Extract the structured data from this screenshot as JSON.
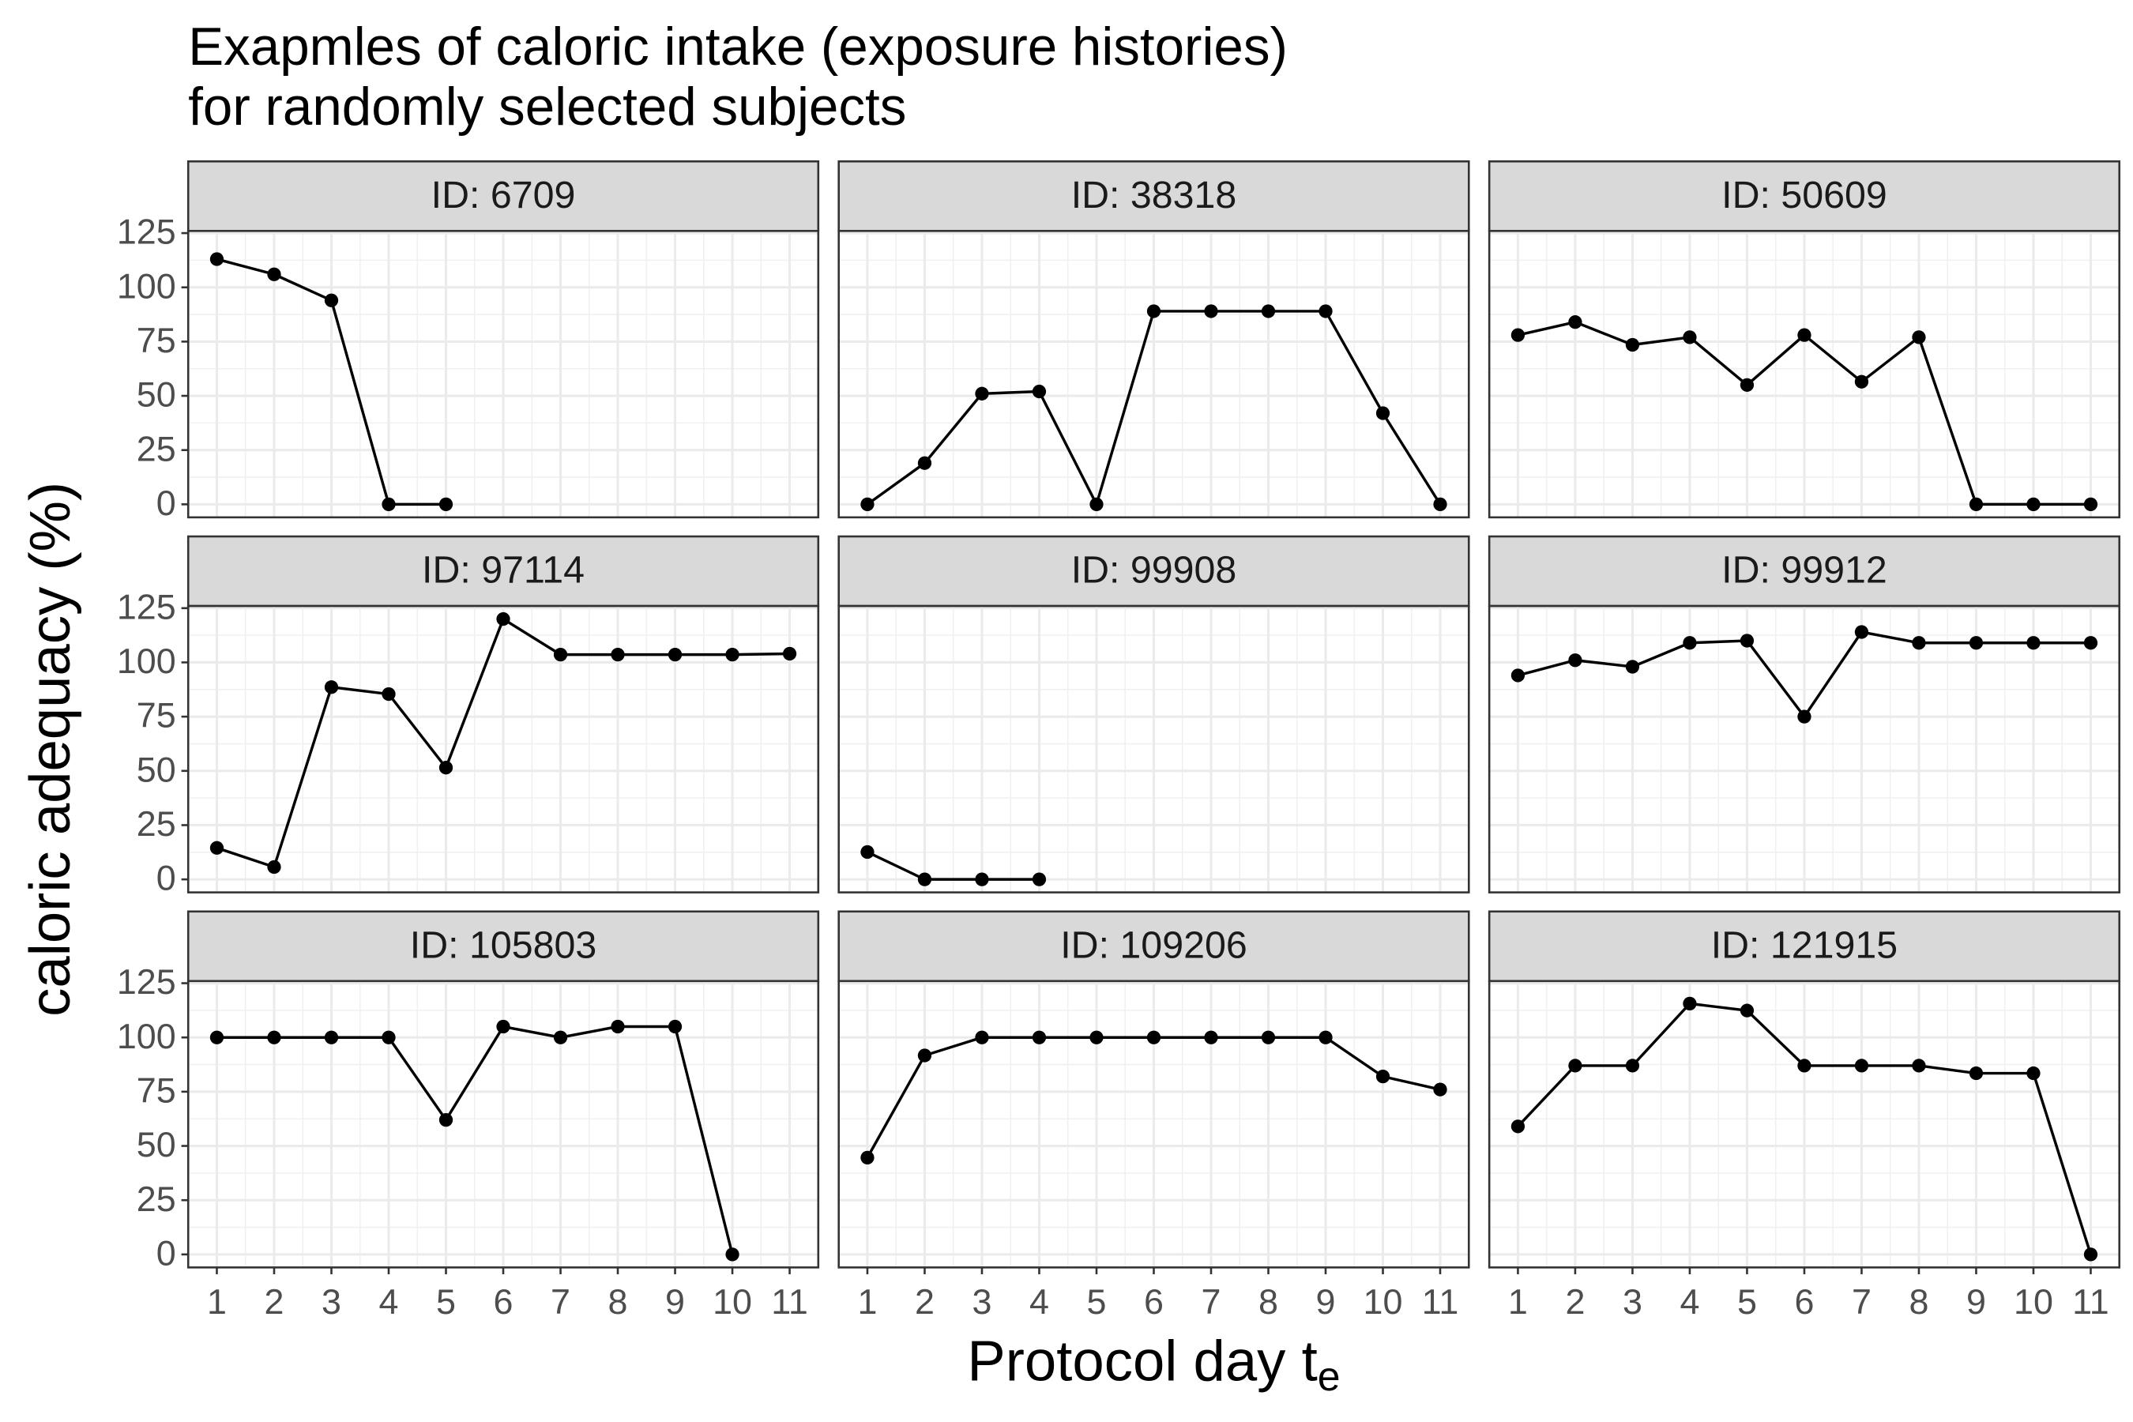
{
  "chart_data": {
    "type": "line",
    "title": [
      "Exapmles of caloric intake (exposure histories)",
      "for randomly selected subjects"
    ],
    "x_label": "Protocol day t",
    "x_label_subscript": "e",
    "y_label": "caloric adequacy (%)",
    "xlim": [
      0.5,
      11.5
    ],
    "xticks": [
      1,
      2,
      3,
      4,
      5,
      6,
      7,
      8,
      9,
      10,
      11
    ],
    "ylim": [
      -6,
      126
    ],
    "yticks": [
      0,
      25,
      50,
      75,
      100,
      125
    ],
    "grid": true,
    "minor_grid": true,
    "color": "#000000",
    "panels": [
      {
        "title": "ID: 6709",
        "x": [
          1,
          2,
          3,
          4,
          5
        ],
        "values": [
          113,
          106,
          94,
          0,
          0
        ]
      },
      {
        "title": "ID: 38318",
        "x": [
          1,
          2,
          3,
          4,
          5,
          6,
          7,
          8,
          9,
          10,
          11
        ],
        "values": [
          0,
          19,
          51,
          52,
          0,
          89,
          89,
          89,
          89,
          42,
          0
        ]
      },
      {
        "title": "ID: 50609",
        "x": [
          1,
          2,
          3,
          4,
          5,
          6,
          7,
          8,
          9,
          10,
          11
        ],
        "values": [
          78,
          84,
          73.5,
          77,
          55,
          78,
          56.5,
          77,
          0,
          0,
          0
        ]
      },
      {
        "title": "ID: 97114",
        "x": [
          1,
          2,
          3,
          4,
          5,
          6,
          7,
          8,
          9,
          10,
          11
        ],
        "values": [
          14.5,
          5.7,
          88.6,
          85.4,
          51.5,
          120,
          103.6,
          103.6,
          103.6,
          103.6,
          104
        ]
      },
      {
        "title": "ID: 99908",
        "x": [
          1,
          2,
          3,
          4
        ],
        "values": [
          12.6,
          0,
          0,
          0
        ]
      },
      {
        "title": "ID: 99912",
        "x": [
          1,
          2,
          3,
          4,
          5,
          6,
          7,
          8,
          9,
          10,
          11
        ],
        "values": [
          94,
          101,
          98,
          109,
          110,
          75,
          114,
          109,
          109,
          109,
          109
        ]
      },
      {
        "title": "ID: 105803",
        "x": [
          1,
          2,
          3,
          4,
          5,
          6,
          7,
          8,
          9,
          10
        ],
        "values": [
          100,
          100,
          100,
          100,
          62,
          105,
          100,
          105,
          105,
          0
        ]
      },
      {
        "title": "ID: 109206",
        "x": [
          1,
          2,
          3,
          4,
          5,
          6,
          7,
          8,
          9,
          10,
          11
        ],
        "values": [
          44.6,
          91.7,
          100,
          100,
          100,
          100,
          100,
          100,
          100,
          82,
          76
        ]
      },
      {
        "title": "ID: 121915",
        "x": [
          1,
          2,
          3,
          4,
          5,
          6,
          7,
          8,
          9,
          10,
          11
        ],
        "values": [
          59,
          87,
          87,
          115.6,
          112.4,
          87,
          87,
          87,
          83.5,
          83.5,
          0
        ]
      }
    ]
  }
}
